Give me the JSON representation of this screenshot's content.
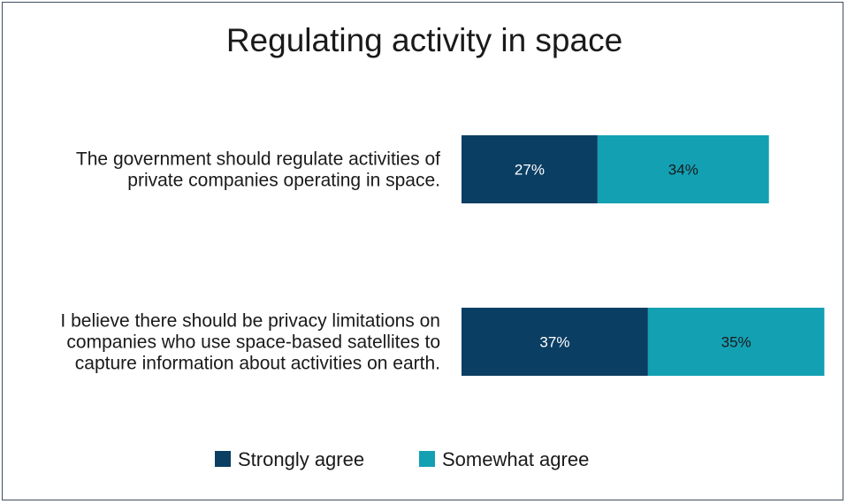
{
  "chart_data": {
    "type": "bar",
    "orientation": "horizontal",
    "stacked": true,
    "title": "Regulating activity in space",
    "categories": [
      "The government should regulate activities of private companies operating in space.",
      "I believe there should be privacy limitations on companies who use space-based satellites to capture information about activities on earth."
    ],
    "category_lines": [
      [
        "The government should regulate activities of",
        "private companies operating in space."
      ],
      [
        "I believe there should be privacy limitations on",
        "companies who use space-based satellites to",
        "capture information about activities on earth."
      ]
    ],
    "series": [
      {
        "name": "Strongly agree",
        "values": [
          27,
          37
        ],
        "labels": [
          "27%",
          "37%"
        ],
        "color": "#0b3e63"
      },
      {
        "name": "Somewhat agree",
        "values": [
          34,
          35
        ],
        "labels": [
          "34%",
          "35%"
        ],
        "color": "#13a0b3"
      }
    ],
    "unit": "%",
    "grid": false,
    "legend_position": "bottom"
  }
}
